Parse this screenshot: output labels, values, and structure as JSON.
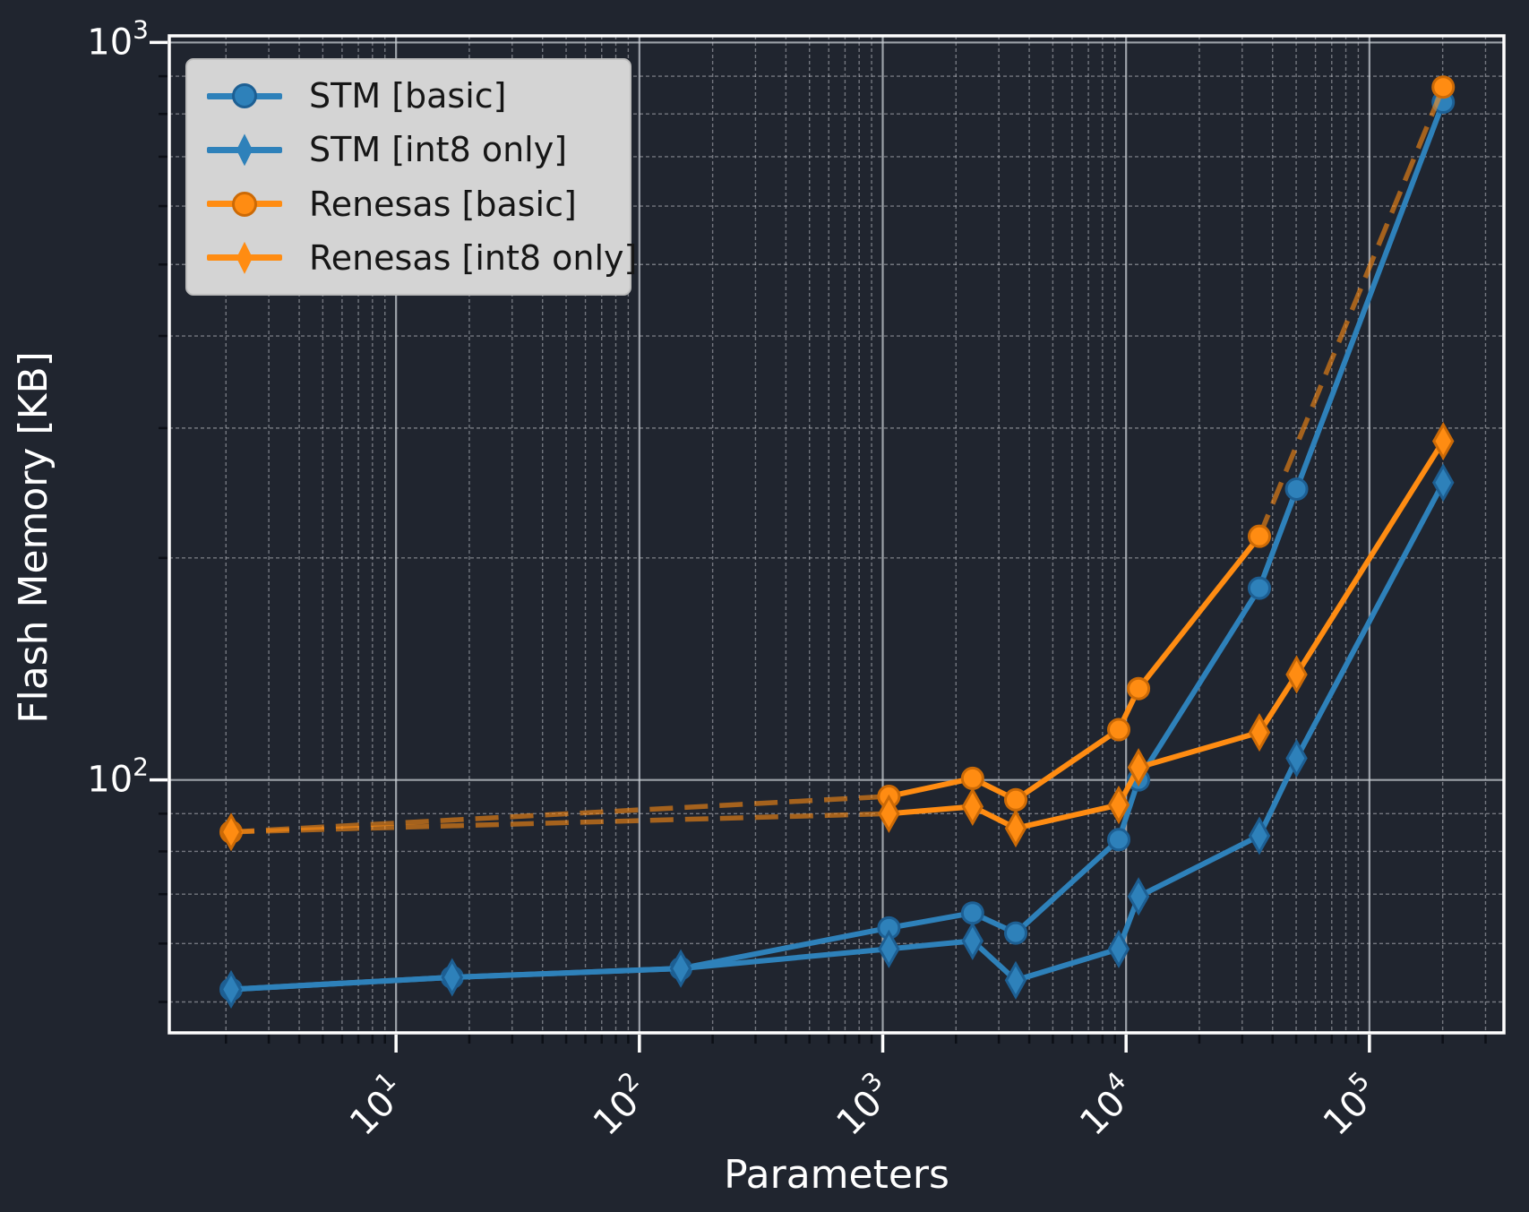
{
  "figure": {
    "bg": "#20252f",
    "xlabel": "Parameters",
    "ylabel": "Flash Memory [KB]",
    "x_tick_labels": [
      "10¹",
      "10²",
      "10³",
      "10⁴",
      "10⁵"
    ],
    "y_tick_labels": [
      "10²",
      "10³"
    ],
    "spine_color": "#ffffff",
    "major_grid_color": "#c7ccd3",
    "minor_grid_color": "#c7cad0",
    "text_color": "#ffffff"
  },
  "legend": {
    "items": [
      {
        "label": "STM [basic]",
        "marker": "circle",
        "color": "#2e81ba",
        "edge": "#1d5f93"
      },
      {
        "label": "STM [int8 only]",
        "marker": "diamond",
        "color": "#2e81ba",
        "edge": "#1d5f93"
      },
      {
        "label": "Renesas [basic]",
        "marker": "circle",
        "color": "#ff8c12",
        "edge": "#cc6a06"
      },
      {
        "label": "Renesas [int8 only]",
        "marker": "diamond",
        "color": "#ff8c12",
        "edge": "#cc6a06"
      }
    ]
  },
  "chart_data": {
    "type": "line",
    "title": "",
    "xlabel": "Parameters",
    "ylabel": "Flash Memory [KB]",
    "xscale": "log",
    "yscale": "log",
    "xlim": [
      1.17,
      357000
    ],
    "ylim": [
      45.4,
      1021
    ],
    "x_major_ticks": [
      10,
      100,
      1000,
      10000,
      100000
    ],
    "y_major_ticks": [
      100,
      1000
    ],
    "grid": "major solid, minor dashed",
    "legend_position": "upper left",
    "series": [
      {
        "name": "STM [basic]",
        "marker": "circle",
        "color": "#2e81ba",
        "edge": "#1d5f93",
        "x": [
          2.1,
          17,
          148,
          1060,
          2340,
          3520,
          9330,
          11250,
          35300,
          50200,
          201000
        ],
        "y": [
          52,
          54,
          55.5,
          63,
          66,
          62,
          83,
          100,
          182,
          248,
          830
        ],
        "dashed_segments": []
      },
      {
        "name": "STM [int8 only]",
        "marker": "diamond",
        "color": "#2e81ba",
        "edge": "#1d5f93",
        "x": [
          2.1,
          17,
          148,
          1060,
          2340,
          3520,
          9330,
          11250,
          35300,
          50200,
          201000
        ],
        "y": [
          52,
          54,
          55.5,
          59,
          60.5,
          53.5,
          59,
          69.5,
          84,
          107,
          253
        ],
        "dashed_segments": []
      },
      {
        "name": "Renesas [basic]",
        "marker": "circle",
        "color": "#ff8c12",
        "edge": "#cc6a06",
        "x": [
          2.1,
          1060,
          2340,
          3520,
          9330,
          11250,
          35300,
          201000
        ],
        "y": [
          85,
          95,
          100.5,
          94,
          117,
          133,
          214,
          870
        ],
        "dashed_segments": [
          0,
          6
        ]
      },
      {
        "name": "Renesas [int8 only]",
        "marker": "diamond",
        "color": "#ff8c12",
        "edge": "#cc6a06",
        "x": [
          2.1,
          1060,
          2340,
          3520,
          9330,
          11250,
          35300,
          50200,
          201000
        ],
        "y": [
          85,
          90,
          92,
          86,
          92.5,
          104,
          116,
          139,
          288
        ],
        "dashed_segments": [
          0
        ]
      }
    ],
    "dashed_line_opacity": 0.6
  }
}
